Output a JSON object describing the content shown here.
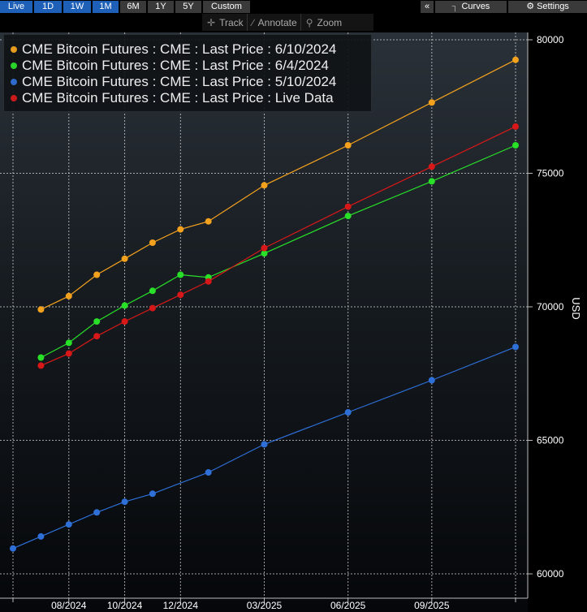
{
  "toolbar": {
    "ranges": [
      {
        "label": "Live",
        "active": true
      },
      {
        "label": "1D",
        "active": true
      },
      {
        "label": "1W",
        "active": true
      },
      {
        "label": "1M",
        "active": true
      },
      {
        "label": "6M",
        "active": false
      },
      {
        "label": "1Y",
        "active": false
      },
      {
        "label": "5Y",
        "active": false
      },
      {
        "label": "Custom",
        "active": false
      }
    ],
    "collapse_label": "«",
    "curves_label": "Curves",
    "settings_label": "Settings",
    "track_label": "Track",
    "annotate_label": "Annotate",
    "zoom_label": "Zoom"
  },
  "chart_data": {
    "type": "line",
    "ylabel": "USD",
    "ylim": [
      59500,
      81000
    ],
    "yticks": [
      60000,
      65000,
      70000,
      75000,
      80000
    ],
    "x_ticks": [
      "08/2024",
      "10/2024",
      "12/2024",
      "03/2025",
      "06/2025",
      "09/2025"
    ],
    "grid": true,
    "legend_position": "top-left",
    "x": [
      "2024-06",
      "2024-07",
      "2024-08",
      "2024-09",
      "2024-10",
      "2024-11",
      "2024-12",
      "2025-03",
      "2025-06",
      "2025-09",
      "2025-12"
    ],
    "series": [
      {
        "name": "CME Bitcoin Futures : CME : Last Price : 6/10/2024",
        "color": "#f4a21e",
        "points": [
          [
            "2024-07",
            69900
          ],
          [
            "2024-08",
            70400
          ],
          [
            "2024-09",
            71200
          ],
          [
            "2024-10",
            71800
          ],
          [
            "2024-11",
            72400
          ],
          [
            "2024-12",
            72900
          ],
          [
            "2025-01",
            73200
          ],
          [
            "2025-03",
            74550
          ],
          [
            "2025-06",
            76050
          ],
          [
            "2025-09",
            77650
          ],
          [
            "2025-12",
            79250
          ]
        ]
      },
      {
        "name": "CME Bitcoin Futures : CME : Last Price : 6/4/2024",
        "color": "#28e028",
        "points": [
          [
            "2024-07",
            68100
          ],
          [
            "2024-08",
            68650
          ],
          [
            "2024-09",
            69450
          ],
          [
            "2024-10",
            70050
          ],
          [
            "2024-11",
            70600
          ],
          [
            "2024-12",
            71200
          ],
          [
            "2025-01",
            71100
          ],
          [
            "2025-03",
            72000
          ],
          [
            "2025-06",
            73400
          ],
          [
            "2025-09",
            74700
          ],
          [
            "2025-12",
            76050
          ]
        ]
      },
      {
        "name": "CME Bitcoin Futures : CME : Last Price : 5/10/2024",
        "color": "#2e6fd8",
        "points": [
          [
            "2024-06",
            60950
          ],
          [
            "2024-07",
            61400
          ],
          [
            "2024-08",
            61850
          ],
          [
            "2024-09",
            62300
          ],
          [
            "2024-10",
            62700
          ],
          [
            "2024-11",
            63000
          ],
          [
            "2025-01",
            63800
          ],
          [
            "2025-03",
            64850
          ],
          [
            "2025-06",
            66050
          ],
          [
            "2025-09",
            67250
          ],
          [
            "2025-12",
            68500
          ]
        ]
      },
      {
        "name": "CME Bitcoin Futures : CME : Last Price : Live Data",
        "color": "#d81818",
        "points": [
          [
            "2024-07",
            67800
          ],
          [
            "2024-08",
            68250
          ],
          [
            "2024-09",
            68900
          ],
          [
            "2024-10",
            69450
          ],
          [
            "2024-11",
            69950
          ],
          [
            "2024-12",
            70450
          ],
          [
            "2025-01",
            70950
          ],
          [
            "2025-03",
            72200
          ],
          [
            "2025-06",
            73750
          ],
          [
            "2025-09",
            75250
          ],
          [
            "2025-12",
            76750
          ]
        ]
      }
    ]
  }
}
